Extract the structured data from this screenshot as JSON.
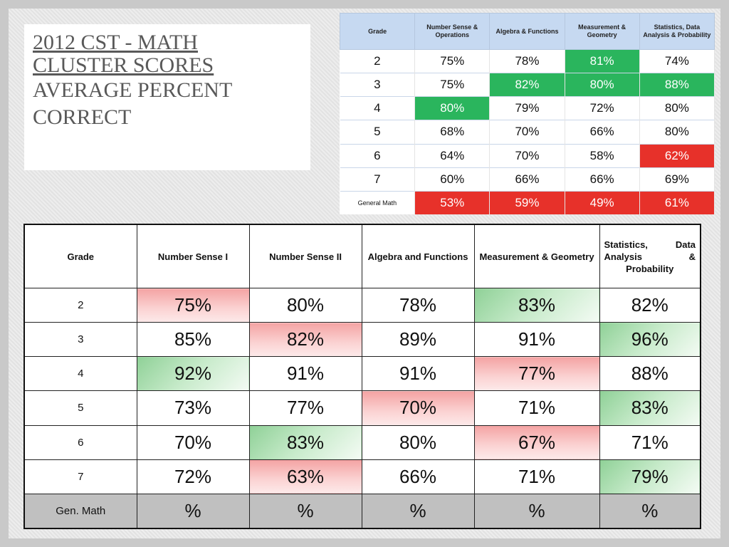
{
  "title": {
    "line1a": "2012 CST - Math",
    "line1b": "Cluster Scores",
    "line2a": "Average Percent",
    "line2b": "Correct"
  },
  "top_table": {
    "headers": [
      "Grade",
      "Number Sense & Operations",
      "Algebra & Functions",
      "Measurement & Geometry",
      "Statistics, Data Analysis & Probability"
    ],
    "rows": [
      {
        "grade": "2",
        "cells": [
          {
            "v": "75%",
            "h": ""
          },
          {
            "v": "78%",
            "h": ""
          },
          {
            "v": "81%",
            "h": "green"
          },
          {
            "v": "74%",
            "h": ""
          }
        ]
      },
      {
        "grade": "3",
        "cells": [
          {
            "v": "75%",
            "h": ""
          },
          {
            "v": "82%",
            "h": "green"
          },
          {
            "v": "80%",
            "h": "green"
          },
          {
            "v": "88%",
            "h": "green"
          }
        ]
      },
      {
        "grade": "4",
        "cells": [
          {
            "v": "80%",
            "h": "green"
          },
          {
            "v": "79%",
            "h": ""
          },
          {
            "v": "72%",
            "h": ""
          },
          {
            "v": "80%",
            "h": ""
          }
        ]
      },
      {
        "grade": "5",
        "cells": [
          {
            "v": "68%",
            "h": ""
          },
          {
            "v": "70%",
            "h": ""
          },
          {
            "v": "66%",
            "h": ""
          },
          {
            "v": "80%",
            "h": ""
          }
        ]
      },
      {
        "grade": "6",
        "cells": [
          {
            "v": "64%",
            "h": ""
          },
          {
            "v": "70%",
            "h": ""
          },
          {
            "v": "58%",
            "h": ""
          },
          {
            "v": "62%",
            "h": "red"
          }
        ]
      },
      {
        "grade": "7",
        "cells": [
          {
            "v": "60%",
            "h": ""
          },
          {
            "v": "66%",
            "h": ""
          },
          {
            "v": "66%",
            "h": ""
          },
          {
            "v": "69%",
            "h": ""
          }
        ]
      },
      {
        "grade": "General Math",
        "cells": [
          {
            "v": "53%",
            "h": "red"
          },
          {
            "v": "59%",
            "h": "red"
          },
          {
            "v": "49%",
            "h": "red"
          },
          {
            "v": "61%",
            "h": "red"
          }
        ]
      }
    ]
  },
  "main_table": {
    "headers": [
      "Grade",
      "Number Sense I",
      "Number Sense II",
      "Algebra and Functions",
      "Measurement & Geometry",
      "Statistics, Data Analysis & Probability"
    ],
    "rows": [
      {
        "grade": "2",
        "cells": [
          {
            "v": "75%",
            "h": "red"
          },
          {
            "v": "80%",
            "h": ""
          },
          {
            "v": "78%",
            "h": ""
          },
          {
            "v": "83%",
            "h": "green"
          },
          {
            "v": "82%",
            "h": ""
          }
        ]
      },
      {
        "grade": "3",
        "cells": [
          {
            "v": "85%",
            "h": ""
          },
          {
            "v": "82%",
            "h": "red"
          },
          {
            "v": "89%",
            "h": ""
          },
          {
            "v": "91%",
            "h": ""
          },
          {
            "v": "96%",
            "h": "green"
          }
        ]
      },
      {
        "grade": "4",
        "cells": [
          {
            "v": "92%",
            "h": "green"
          },
          {
            "v": "91%",
            "h": ""
          },
          {
            "v": "91%",
            "h": ""
          },
          {
            "v": "77%",
            "h": "red"
          },
          {
            "v": "88%",
            "h": ""
          }
        ]
      },
      {
        "grade": "5",
        "cells": [
          {
            "v": "73%",
            "h": ""
          },
          {
            "v": "77%",
            "h": ""
          },
          {
            "v": "70%",
            "h": "red"
          },
          {
            "v": "71%",
            "h": ""
          },
          {
            "v": "83%",
            "h": "green"
          }
        ]
      },
      {
        "grade": "6",
        "cells": [
          {
            "v": "70%",
            "h": ""
          },
          {
            "v": "83%",
            "h": "green"
          },
          {
            "v": "80%",
            "h": ""
          },
          {
            "v": "67%",
            "h": "red"
          },
          {
            "v": "71%",
            "h": ""
          }
        ]
      },
      {
        "grade": "7",
        "cells": [
          {
            "v": "72%",
            "h": ""
          },
          {
            "v": "63%",
            "h": "red"
          },
          {
            "v": "66%",
            "h": ""
          },
          {
            "v": "71%",
            "h": ""
          },
          {
            "v": "79%",
            "h": "green"
          }
        ]
      },
      {
        "grade": "Gen. Math",
        "cells": [
          {
            "v": "%",
            "h": ""
          },
          {
            "v": "%",
            "h": ""
          },
          {
            "v": "%",
            "h": ""
          },
          {
            "v": "%",
            "h": ""
          },
          {
            "v": "%",
            "h": ""
          }
        ]
      }
    ]
  }
}
